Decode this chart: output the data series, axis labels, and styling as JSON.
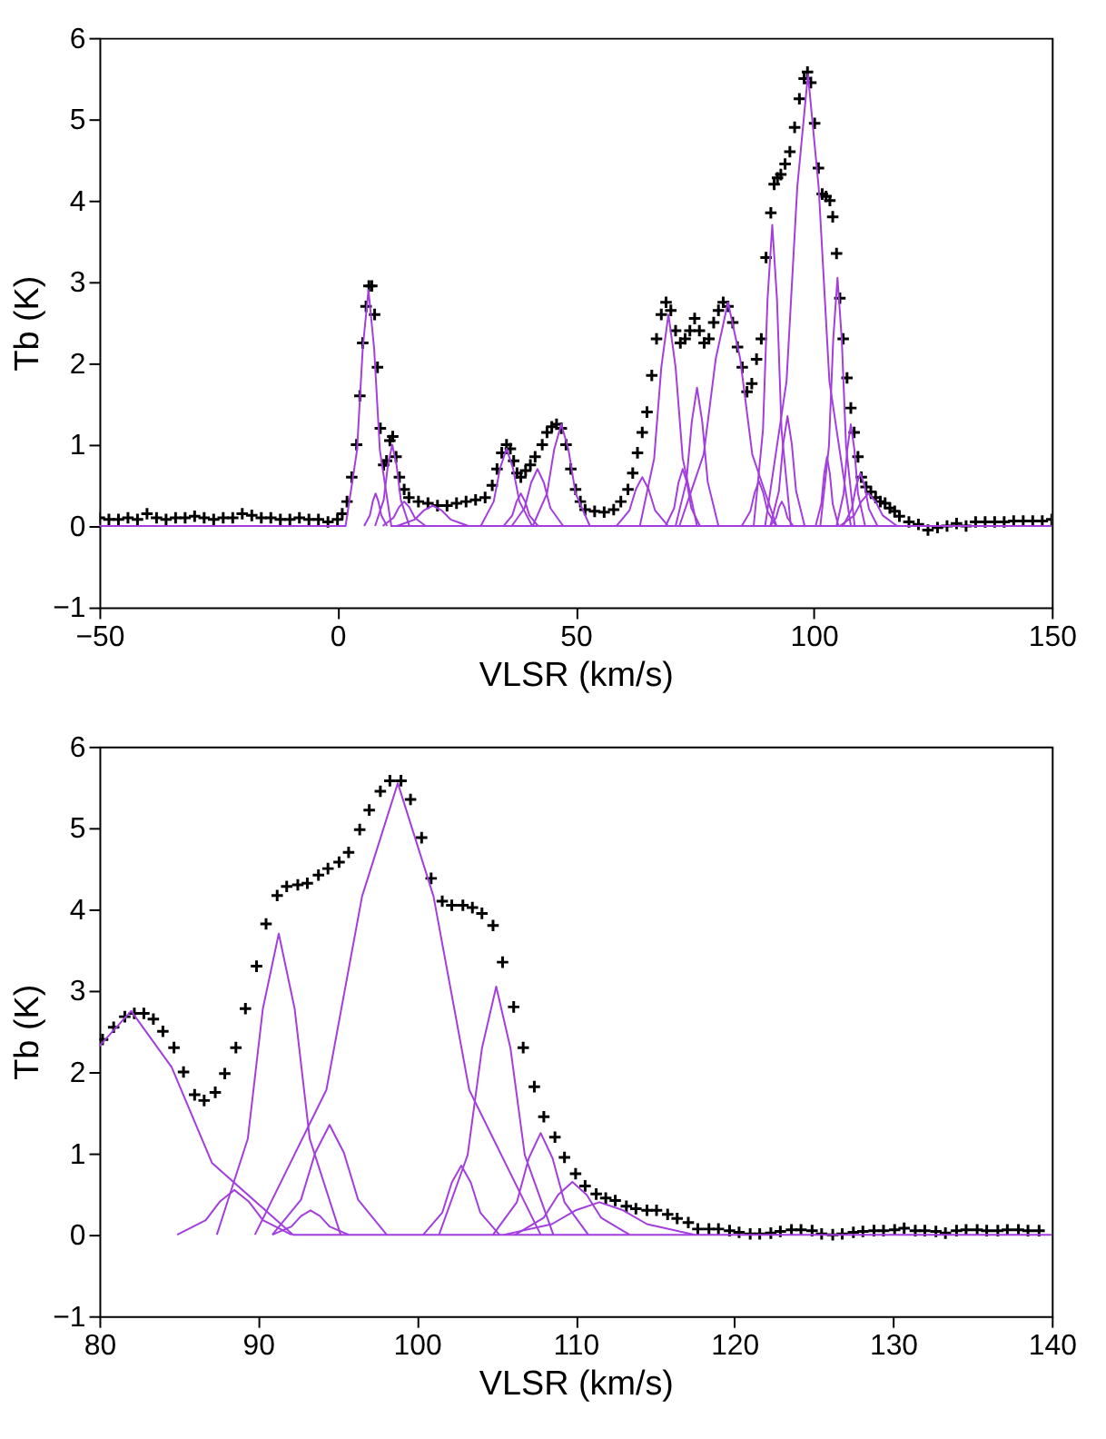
{
  "chart_data": [
    {
      "type": "line",
      "xlabel": "VLSR (km/s)",
      "ylabel": "Tb (K)",
      "xlim": [
        -50,
        150
      ],
      "ylim": [
        -1,
        6
      ],
      "xticks": [
        -50,
        0,
        50,
        100,
        150
      ],
      "yticks": [
        -1,
        0,
        1,
        2,
        3,
        4,
        5,
        6
      ],
      "grid": false,
      "line_style": "solid",
      "series": [
        {
          "type": "scatter",
          "marker": "cross",
          "color": "#000000",
          "x": [
            -50,
            -48,
            -46,
            -44,
            -42,
            -40,
            -38,
            -36,
            -34,
            -32,
            -30,
            -28,
            -26,
            -24,
            -22,
            -20,
            -18,
            -16,
            -14,
            -12,
            -10,
            -8,
            -6,
            -4,
            -2,
            0,
            1,
            2,
            3,
            4,
            4.7,
            5.3,
            6,
            6.6,
            7.2,
            7.8,
            8.4,
            9,
            9.7,
            10.3,
            11,
            11.6,
            12.3,
            13,
            14,
            15,
            17,
            19,
            21,
            23,
            25,
            27,
            29,
            31,
            32.5,
            33.5,
            34.5,
            35.5,
            36.3,
            37,
            37.7,
            38.5,
            39.5,
            40.5,
            41.5,
            43,
            44,
            45,
            46,
            47,
            48,
            49,
            50,
            51,
            52,
            54,
            56,
            58,
            59.5,
            61,
            62,
            63,
            64,
            65,
            66,
            67,
            68,
            69,
            70,
            71,
            72,
            73,
            74,
            75,
            76,
            77,
            78,
            79,
            80,
            81,
            82,
            83,
            84,
            85,
            86,
            87,
            88,
            89,
            90,
            91,
            91.7,
            92.4,
            93.1,
            94,
            95,
            96,
            97,
            98,
            98.7,
            99.4,
            100.2,
            101,
            101.8,
            102.6,
            103.4,
            104,
            104.8,
            105.5,
            106.2,
            107,
            107.8,
            108.5,
            109.3,
            110,
            111,
            112,
            113,
            114,
            115,
            116,
            117,
            118,
            120,
            122,
            124,
            126,
            128,
            130,
            132,
            134,
            136,
            138,
            140,
            142,
            144,
            146,
            148,
            150
          ],
          "values": [
            0.1,
            0.08,
            0.08,
            0.1,
            0.08,
            0.15,
            0.1,
            0.08,
            0.1,
            0.1,
            0.12,
            0.1,
            0.08,
            0.1,
            0.1,
            0.15,
            0.13,
            0.1,
            0.1,
            0.08,
            0.08,
            0.1,
            0.08,
            0.08,
            0.05,
            0.08,
            0.15,
            0.3,
            0.6,
            1.0,
            1.6,
            2.25,
            2.7,
            2.95,
            2.95,
            2.6,
            1.95,
            1.2,
            0.75,
            0.8,
            1.05,
            1.1,
            0.85,
            0.6,
            0.45,
            0.35,
            0.3,
            0.28,
            0.25,
            0.25,
            0.28,
            0.3,
            0.32,
            0.35,
            0.5,
            0.7,
            0.9,
            1.0,
            0.95,
            0.8,
            0.65,
            0.6,
            0.68,
            0.75,
            0.85,
            1.0,
            1.15,
            1.22,
            1.25,
            1.2,
            1.0,
            0.7,
            0.45,
            0.3,
            0.2,
            0.18,
            0.17,
            0.2,
            0.3,
            0.45,
            0.65,
            0.9,
            1.15,
            1.4,
            1.85,
            2.3,
            2.6,
            2.75,
            2.65,
            2.4,
            2.25,
            2.3,
            2.4,
            2.55,
            2.4,
            2.25,
            2.3,
            2.5,
            2.65,
            2.75,
            2.7,
            2.5,
            2.2,
            1.95,
            1.65,
            1.75,
            2.05,
            2.3,
            3.3,
            3.85,
            4.2,
            4.28,
            4.32,
            4.45,
            4.6,
            4.9,
            5.25,
            5.5,
            5.58,
            5.45,
            4.95,
            4.4,
            4.08,
            4.05,
            4.0,
            3.8,
            3.35,
            2.8,
            2.3,
            1.82,
            1.45,
            1.15,
            0.85,
            0.6,
            0.48,
            0.42,
            0.35,
            0.3,
            0.28,
            0.22,
            0.18,
            0.12,
            0.05,
            0.02,
            -0.05,
            -0.02,
            0.0,
            0.03,
            0.0,
            0.05,
            0.05,
            0.05,
            0.05,
            0.06,
            0.06,
            0.06,
            0.06,
            0.08
          ]
        },
        {
          "color": "#a33de0",
          "x": [
            -50,
            1.7,
            4.1,
            5.3,
            6.5,
            7.7,
            8.9,
            11.3,
            150
          ],
          "values": [
            0,
            0,
            0.93,
            2.18,
            2.9,
            2.18,
            0.93,
            0,
            0
          ]
        },
        {
          "color": "#a33de0",
          "x": [
            5.6,
            6.8,
            7.4,
            8,
            8.6,
            9.2,
            10.4
          ],
          "values": [
            0,
            0.13,
            0.3,
            0.4,
            0.3,
            0.13,
            0
          ]
        },
        {
          "color": "#a33de0",
          "x": [
            7.9,
            9.7,
            10.6,
            11.5,
            12.4,
            13.3,
            15.1
          ],
          "values": [
            0,
            0.32,
            0.75,
            1.0,
            0.75,
            0.32,
            0
          ]
        },
        {
          "color": "#a33de0",
          "x": [
            9.5,
            11.75,
            12.9,
            14,
            15.1,
            16.25,
            18.5
          ],
          "values": [
            0,
            0.1,
            0.23,
            0.3,
            0.23,
            0.1,
            0
          ]
        },
        {
          "color": "#a33de0",
          "x": [
            12.5,
            16.25,
            18.1,
            20,
            21.9,
            23.75,
            27.5
          ],
          "values": [
            0,
            0.08,
            0.19,
            0.25,
            0.19,
            0.08,
            0
          ]
        },
        {
          "color": "#a33de0",
          "x": [
            30.1,
            32.8,
            34.15,
            35.5,
            36.85,
            38.2,
            40.9
          ],
          "values": [
            0,
            0.3,
            0.71,
            0.95,
            0.71,
            0.3,
            0
          ]
        },
        {
          "color": "#a33de0",
          "x": [
            34.9,
            36.7,
            37.6,
            38.5,
            39.4,
            40.3,
            42.1
          ],
          "values": [
            0,
            0.13,
            0.3,
            0.4,
            0.3,
            0.13,
            0
          ]
        },
        {
          "color": "#a33de0",
          "x": [
            36.6,
            39.3,
            40.65,
            42,
            43.35,
            44.7,
            47.4
          ],
          "values": [
            0,
            0.22,
            0.53,
            0.7,
            0.53,
            0.22,
            0
          ]
        },
        {
          "color": "#a33de0",
          "x": [
            41,
            44,
            45.5,
            47,
            48.5,
            50,
            53
          ],
          "values": [
            0,
            0.4,
            0.94,
            1.25,
            0.94,
            0.4,
            0
          ]
        },
        {
          "color": "#a33de0",
          "x": [
            58.6,
            61.3,
            62.65,
            64,
            65.35,
            66.7,
            69.4
          ],
          "values": [
            0,
            0.19,
            0.45,
            0.6,
            0.45,
            0.19,
            0
          ]
        },
        {
          "color": "#a33de0",
          "x": [
            63.5,
            66.5,
            68,
            69.5,
            71,
            72.5,
            75.5
          ],
          "values": [
            0,
            0.83,
            1.95,
            2.6,
            1.95,
            0.83,
            0
          ]
        },
        {
          "color": "#a33de0",
          "x": [
            68.9,
            70.7,
            71.6,
            72.5,
            73.4,
            74.3,
            76.1
          ],
          "values": [
            0,
            0.22,
            0.53,
            0.7,
            0.53,
            0.22,
            0
          ]
        },
        {
          "color": "#a33de0",
          "x": [
            71,
            73.25,
            74.4,
            75.5,
            76.6,
            77.75,
            80
          ],
          "values": [
            0,
            0.54,
            1.28,
            1.7,
            1.28,
            0.54,
            0
          ]
        },
        {
          "color": "#a33de0",
          "x": [
            71.8,
            76.9,
            79.45,
            82,
            84.55,
            87.1,
            92.2
          ],
          "values": [
            0,
            0.88,
            2.06,
            2.75,
            2.06,
            0.88,
            0
          ]
        },
        {
          "color": "#a33de0",
          "x": [
            84.9,
            86.7,
            87.6,
            88.5,
            89.4,
            90.3,
            92.1
          ],
          "values": [
            0,
            0.18,
            0.41,
            0.55,
            0.41,
            0.18,
            0
          ]
        },
        {
          "color": "#a33de0",
          "x": [
            87.4,
            89.35,
            90.3,
            91.3,
            92.3,
            93.25,
            95.2
          ],
          "values": [
            0,
            1.18,
            2.78,
            3.7,
            2.78,
            1.18,
            0
          ]
        },
        {
          "color": "#a33de0",
          "x": [
            90.9,
            92.1,
            92.7,
            93.3,
            93.9,
            94.5,
            95.7
          ],
          "values": [
            0,
            0.1,
            0.23,
            0.3,
            0.23,
            0.1,
            0
          ]
        },
        {
          "color": "#a33de0",
          "x": [
            90.9,
            92.7,
            93.6,
            94.5,
            95.4,
            96.3,
            98.1
          ],
          "values": [
            0,
            0.43,
            1.01,
            1.35,
            1.01,
            0.43,
            0
          ]
        },
        {
          "color": "#a33de0",
          "x": [
            89.8,
            94.3,
            96.55,
            98.8,
            101.05,
            103.3,
            107.8
          ],
          "values": [
            0,
            1.78,
            4.16,
            5.55,
            4.16,
            1.78,
            0
          ]
        },
        {
          "color": "#a33de0",
          "x": [
            100.4,
            101.6,
            102.2,
            102.8,
            103.4,
            104,
            105.2
          ],
          "values": [
            0,
            0.27,
            0.64,
            0.85,
            0.64,
            0.27,
            0
          ]
        },
        {
          "color": "#a33de0",
          "x": [
            101.4,
            103.2,
            104.1,
            105,
            105.9,
            106.8,
            108.6
          ],
          "values": [
            0,
            0.98,
            2.29,
            3.05,
            2.29,
            0.98,
            0
          ]
        },
        {
          "color": "#a33de0",
          "x": [
            104.8,
            106.3,
            107.05,
            107.8,
            108.55,
            109.3,
            110.8
          ],
          "values": [
            0,
            0.4,
            0.94,
            1.25,
            0.94,
            0.4,
            0
          ]
        },
        {
          "color": "#a33de0",
          "x": [
            106.2,
            108,
            108.9,
            109.8,
            110.7,
            111.6,
            113.4
          ],
          "values": [
            0,
            0.21,
            0.49,
            0.65,
            0.49,
            0.21,
            0
          ]
        },
        {
          "color": "#a33de0",
          "x": [
            105.5,
            108.5,
            110,
            111.5,
            113,
            114.5,
            117.5
          ],
          "values": [
            0,
            0.13,
            0.3,
            0.4,
            0.3,
            0.13,
            0
          ]
        }
      ]
    },
    {
      "type": "line",
      "xlabel": "VLSR (km/s)",
      "ylabel": "Tb (K)",
      "xlim": [
        80,
        140
      ],
      "ylim": [
        -1,
        6
      ],
      "xticks": [
        80,
        90,
        100,
        110,
        120,
        130,
        140
      ],
      "yticks": [
        -1,
        0,
        1,
        2,
        3,
        4,
        5,
        6
      ],
      "grid": false,
      "line_style": "solid",
      "series": [
        {
          "type": "scatter",
          "marker": "cross",
          "color": "#000000",
          "x": [
            80.2,
            80.9,
            81.6,
            82.2,
            82.8,
            83.4,
            84.0,
            84.7,
            85.3,
            86.0,
            86.6,
            87.3,
            87.9,
            88.6,
            89.2,
            89.9,
            90.5,
            91.2,
            91.8,
            92.5,
            93.1,
            93.8,
            94.4,
            95.1,
            95.7,
            96.4,
            97.0,
            97.7,
            98.3,
            99.0,
            99.6,
            100.3,
            100.9,
            101.6,
            102.2,
            102.9,
            103.5,
            104.1,
            104.8,
            105.4,
            106.1,
            106.7,
            107.4,
            108.0,
            108.7,
            109.3,
            110.0,
            110.6,
            111.3,
            111.9,
            112.5,
            113.2,
            113.8,
            114.5,
            115.1,
            115.8,
            116.4,
            117.1,
            117.7,
            118.4,
            119.0,
            119.7,
            120.3,
            121.0,
            121.6,
            122.3,
            122.9,
            123.6,
            124.2,
            124.9,
            125.5,
            126.2,
            126.8,
            127.5,
            128.1,
            128.8,
            129.4,
            130.1,
            130.7,
            131.4,
            132.0,
            132.7,
            133.3,
            134.0,
            134.6,
            135.3,
            135.9,
            136.6,
            137.2,
            137.9,
            138.5,
            139.2
          ],
          "values": [
            2.4,
            2.55,
            2.68,
            2.72,
            2.72,
            2.65,
            2.5,
            2.3,
            2.0,
            1.72,
            1.65,
            1.75,
            1.98,
            2.3,
            2.78,
            3.3,
            3.82,
            4.17,
            4.28,
            4.3,
            4.32,
            4.42,
            4.5,
            4.58,
            4.7,
            4.98,
            5.22,
            5.45,
            5.58,
            5.58,
            5.35,
            4.88,
            4.38,
            4.1,
            4.05,
            4.05,
            4.02,
            3.95,
            3.8,
            3.35,
            2.8,
            2.3,
            1.82,
            1.45,
            1.2,
            0.95,
            0.75,
            0.6,
            0.5,
            0.45,
            0.42,
            0.35,
            0.32,
            0.3,
            0.3,
            0.25,
            0.2,
            0.15,
            0.07,
            0.07,
            0.07,
            0.05,
            0.03,
            0.01,
            0.01,
            0.02,
            0.04,
            0.06,
            0.06,
            0.05,
            0.01,
            0.0,
            0.01,
            0.03,
            0.04,
            0.05,
            0.05,
            0.06,
            0.08,
            0.05,
            0.05,
            0.04,
            0.02,
            0.05,
            0.06,
            0.06,
            0.05,
            0.05,
            0.06,
            0.06,
            0.05,
            0.05
          ]
        },
        {
          "color": "#a33de0",
          "x": [
            80,
            82,
            84.55,
            87.1,
            92.2,
            140
          ],
          "values": [
            2.32,
            2.75,
            2.06,
            0.88,
            0,
            0
          ]
        },
        {
          "color": "#a33de0",
          "x": [
            84.9,
            86.7,
            87.6,
            88.5,
            89.4,
            90.3,
            92.1
          ],
          "values": [
            0,
            0.18,
            0.41,
            0.55,
            0.41,
            0.18,
            0
          ]
        },
        {
          "color": "#a33de0",
          "x": [
            87.4,
            89.35,
            90.3,
            91.3,
            92.3,
            93.25,
            95.2
          ],
          "values": [
            0,
            1.18,
            2.78,
            3.7,
            2.78,
            1.18,
            0
          ]
        },
        {
          "color": "#a33de0",
          "x": [
            90.9,
            92.1,
            92.7,
            93.3,
            93.9,
            94.5,
            95.7
          ],
          "values": [
            0,
            0.1,
            0.23,
            0.3,
            0.23,
            0.1,
            0
          ]
        },
        {
          "color": "#a33de0",
          "x": [
            90.9,
            92.7,
            93.6,
            94.5,
            95.4,
            96.3,
            98.1
          ],
          "values": [
            0,
            0.43,
            1.01,
            1.35,
            1.01,
            0.43,
            0
          ]
        },
        {
          "color": "#a33de0",
          "x": [
            89.8,
            94.3,
            96.55,
            98.8,
            101.05,
            103.3,
            107.8
          ],
          "values": [
            0,
            1.78,
            4.16,
            5.55,
            4.16,
            1.78,
            0
          ]
        },
        {
          "color": "#a33de0",
          "x": [
            100.4,
            101.6,
            102.2,
            102.8,
            103.4,
            104,
            105.2
          ],
          "values": [
            0,
            0.27,
            0.64,
            0.85,
            0.64,
            0.27,
            0
          ]
        },
        {
          "color": "#a33de0",
          "x": [
            101.4,
            103.2,
            104.1,
            105,
            105.9,
            106.8,
            108.6
          ],
          "values": [
            0,
            0.98,
            2.29,
            3.05,
            2.29,
            0.98,
            0
          ]
        },
        {
          "color": "#a33de0",
          "x": [
            104.8,
            106.3,
            107.05,
            107.8,
            108.55,
            109.3,
            110.8
          ],
          "values": [
            0,
            0.4,
            0.94,
            1.25,
            0.94,
            0.4,
            0
          ]
        },
        {
          "color": "#a33de0",
          "x": [
            106.2,
            108,
            108.9,
            109.8,
            110.7,
            111.6,
            113.4
          ],
          "values": [
            0,
            0.21,
            0.49,
            0.65,
            0.49,
            0.21,
            0
          ]
        },
        {
          "color": "#a33de0",
          "x": [
            105.5,
            108.5,
            110,
            111.5,
            113,
            114.5,
            117.5
          ],
          "values": [
            0,
            0.13,
            0.3,
            0.4,
            0.3,
            0.13,
            0
          ]
        }
      ]
    }
  ]
}
